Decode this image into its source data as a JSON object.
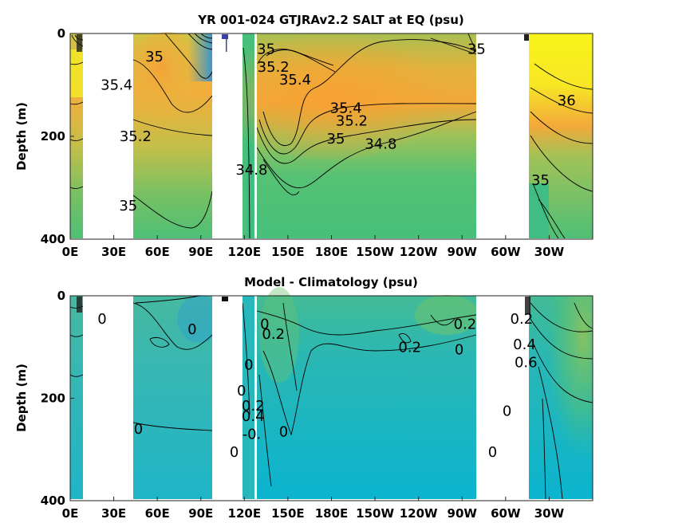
{
  "chart_data": [
    {
      "type": "heatmap",
      "title": "YR 001-024 GTJRAv2.2 SALT at EQ (psu)",
      "xlabel": "",
      "ylabel": "Depth (m)",
      "x_ticks": [
        "0E",
        "30E",
        "60E",
        "90E",
        "120E",
        "150E",
        "180E",
        "150W",
        "120W",
        "90W",
        "60W",
        "30W"
      ],
      "y_ticks": [
        "0",
        "200",
        "400"
      ],
      "ylim": [
        400,
        0
      ],
      "y_reversed": true,
      "contour_labels": [
        {
          "text": "35",
          "lon": 58,
          "depth": 45
        },
        {
          "text": "35.4",
          "lon": 32,
          "depth": 100
        },
        {
          "text": "35.2",
          "lon": 45,
          "depth": 200
        },
        {
          "text": "35",
          "lon": 40,
          "depth": 335
        },
        {
          "text": "35",
          "lon": 135,
          "depth": 30
        },
        {
          "text": "35.2",
          "lon": 140,
          "depth": 65
        },
        {
          "text": "35.4",
          "lon": 155,
          "depth": 90
        },
        {
          "text": "35.4",
          "lon": 190,
          "depth": 145
        },
        {
          "text": "35.2",
          "lon": 194,
          "depth": 170
        },
        {
          "text": "35",
          "lon": 183,
          "depth": 205
        },
        {
          "text": "34.8",
          "lon": 214,
          "depth": 215
        },
        {
          "text": "34.8",
          "lon": 125,
          "depth": 265
        },
        {
          "text": "35",
          "lon": 280,
          "depth": 30
        },
        {
          "text": "36",
          "lon": 342,
          "depth": 130
        },
        {
          "text": "35",
          "lon": 324,
          "depth": 285
        }
      ]
    },
    {
      "type": "heatmap",
      "title": "Model - Climatology (psu)",
      "xlabel": "",
      "ylabel": "Depth (m)",
      "x_ticks": [
        "0E",
        "30E",
        "60E",
        "90E",
        "120E",
        "150E",
        "180E",
        "150W",
        "120W",
        "90W",
        "60W",
        "30W"
      ],
      "y_ticks": [
        "0",
        "200",
        "400"
      ],
      "ylim": [
        400,
        0
      ],
      "y_reversed": true,
      "contour_labels": [
        {
          "text": "0",
          "lon": 22,
          "depth": 45
        },
        {
          "text": "0",
          "lon": 84,
          "depth": 65
        },
        {
          "text": "0.2",
          "lon": 140,
          "depth": 75
        },
        {
          "text": "0",
          "lon": 134,
          "depth": 55
        },
        {
          "text": "0.2",
          "lon": 272,
          "depth": 55
        },
        {
          "text": "0.2",
          "lon": 234,
          "depth": 100
        },
        {
          "text": "0",
          "lon": 268,
          "depth": 105
        },
        {
          "text": "0",
          "lon": 118,
          "depth": 185
        },
        {
          "text": "0",
          "lon": 123,
          "depth": 135
        },
        {
          "text": "0.2",
          "lon": 126,
          "depth": 215
        },
        {
          "text": "0.4",
          "lon": 126,
          "depth": 235
        },
        {
          "text": "-0.",
          "lon": 125,
          "depth": 270
        },
        {
          "text": "0",
          "lon": 147,
          "depth": 265
        },
        {
          "text": "0",
          "lon": 47,
          "depth": 260
        },
        {
          "text": "0",
          "lon": 113,
          "depth": 305
        },
        {
          "text": "0",
          "lon": 291,
          "depth": 305
        },
        {
          "text": "0.2",
          "lon": 311,
          "depth": 45
        },
        {
          "text": "0.4",
          "lon": 313,
          "depth": 95
        },
        {
          "text": "0.6",
          "lon": 314,
          "depth": 130
        },
        {
          "text": "0",
          "lon": 301,
          "depth": 225
        }
      ]
    }
  ]
}
